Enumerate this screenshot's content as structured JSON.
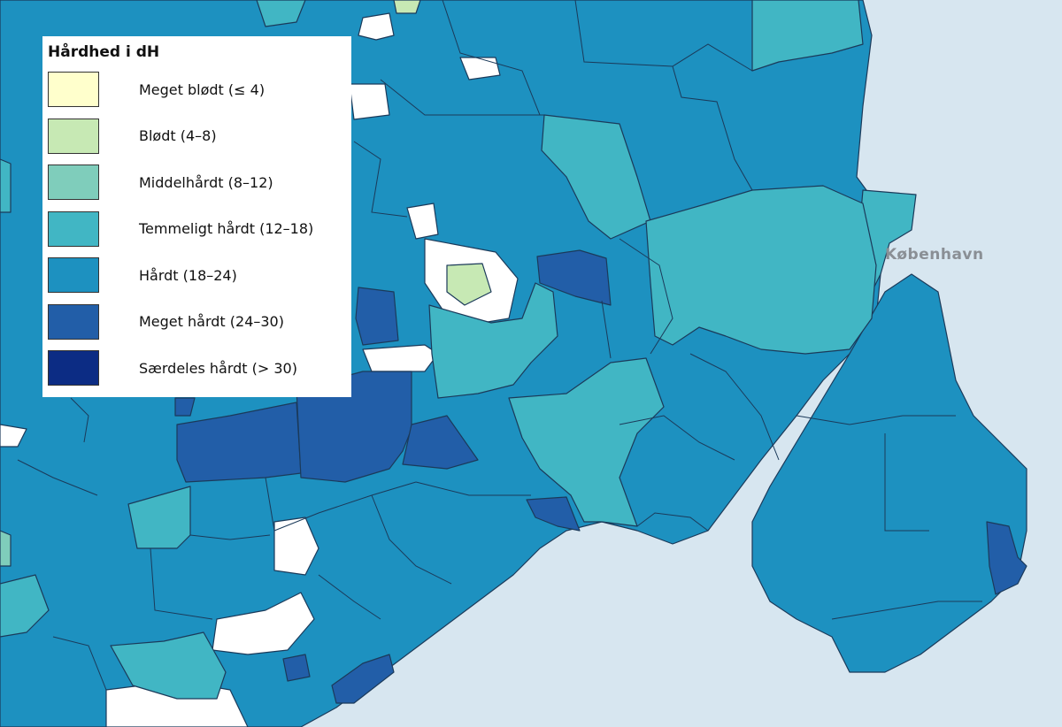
{
  "map": {
    "city_label": "København",
    "colors": {
      "sea": "#d7e6f0",
      "land_unclassified": "#ffffff",
      "c1": "#ffffcc",
      "c2": "#c7e9b4",
      "c3": "#7fcdbb",
      "c4": "#41b6c4",
      "c5": "#1d91c0",
      "c6": "#225ea8",
      "c7": "#0c2c84"
    }
  },
  "legend": {
    "title": "Hårdhed i dH",
    "items": [
      {
        "label": "Meget blødt (≤ 4)",
        "color": "#ffffcc"
      },
      {
        "label": "Blødt (4–8)",
        "color": "#c7e9b4"
      },
      {
        "label": "Middelhårdt (8–12)",
        "color": "#7fcdbb"
      },
      {
        "label": "Temmeligt hårdt (12–18)",
        "color": "#41b6c4"
      },
      {
        "label": "Hårdt (18–24)",
        "color": "#1d91c0"
      },
      {
        "label": "Meget hårdt (24–30)",
        "color": "#225ea8"
      },
      {
        "label": "Særdeles hårdt (> 30)",
        "color": "#0c2c84"
      }
    ]
  }
}
